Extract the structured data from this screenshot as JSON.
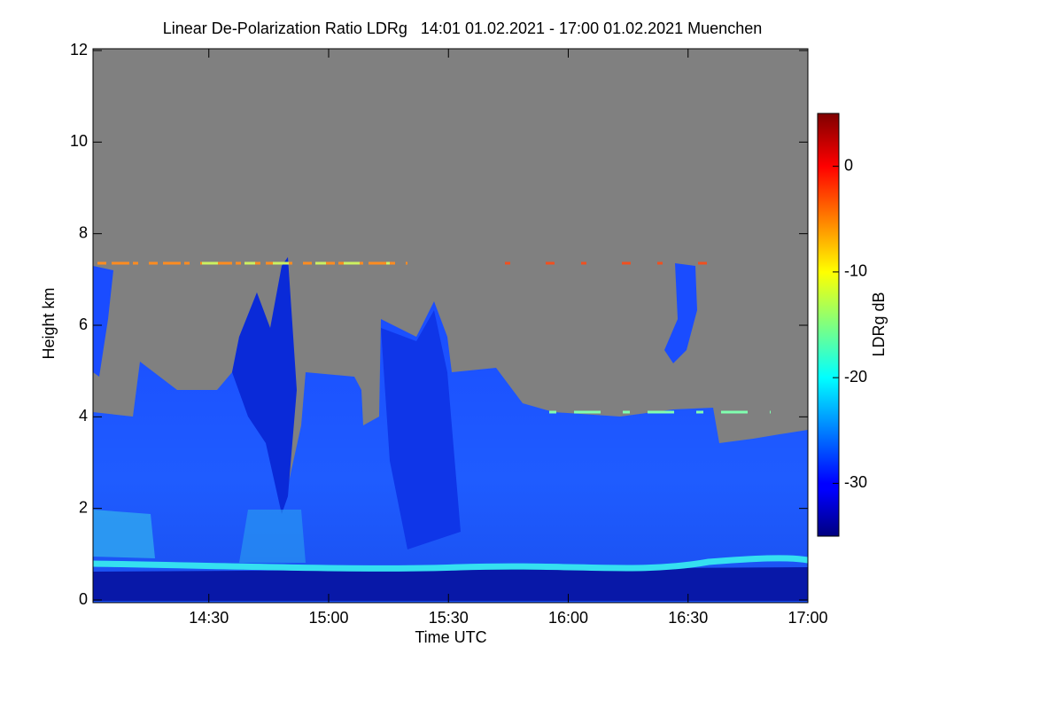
{
  "chart_data": {
    "type": "heatmap",
    "title": "Linear De-Polarization Ratio LDRg   14:01 01.02.2021 - 17:00 01.02.2021 Muenchen",
    "x_label": "Time UTC",
    "y_label": "Height km",
    "colorbar_label": "LDRg dB",
    "xlim": [
      841,
      1020
    ],
    "xticks": [
      {
        "value": 870,
        "label": "14:30"
      },
      {
        "value": 900,
        "label": "15:00"
      },
      {
        "value": 930,
        "label": "15:30"
      },
      {
        "value": 960,
        "label": "16:00"
      },
      {
        "value": 990,
        "label": "16:30"
      },
      {
        "value": 1020,
        "label": "17:00"
      }
    ],
    "ylim": [
      0,
      12
    ],
    "yticks": [
      0,
      2,
      4,
      6,
      8,
      10,
      12
    ],
    "zlim": [
      -35,
      5
    ],
    "zticks": [
      0,
      -10,
      -20,
      -30
    ],
    "colormap": "jet",
    "background": "#808080"
  }
}
